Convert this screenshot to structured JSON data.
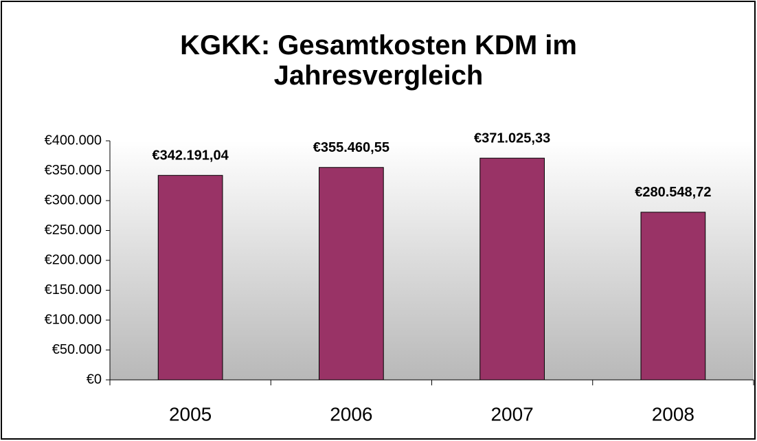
{
  "chart_data": {
    "type": "bar",
    "title": "KGKK: Gesamtkosten KDM im Jahresvergleich",
    "categories": [
      "2005",
      "2006",
      "2007",
      "2008"
    ],
    "values": [
      342191.04,
      355460.55,
      371025.33,
      280548.72
    ],
    "value_labels": [
      "€342.191,04",
      "€355.460,55",
      "€371.025,33",
      "€280.548,72"
    ],
    "color": "#993366",
    "ylim": [
      0,
      400000
    ],
    "yticks": [
      {
        "value": 0,
        "label": "€0"
      },
      {
        "value": 50000,
        "label": "€50.000"
      },
      {
        "value": 100000,
        "label": "€100.000"
      },
      {
        "value": 150000,
        "label": "€150.000"
      },
      {
        "value": 200000,
        "label": "€200.000"
      },
      {
        "value": 250000,
        "label": "€250.000"
      },
      {
        "value": 300000,
        "label": "€300.000"
      },
      {
        "value": 350000,
        "label": "€350.000"
      },
      {
        "value": 400000,
        "label": "€400.000"
      }
    ],
    "grid": false
  }
}
